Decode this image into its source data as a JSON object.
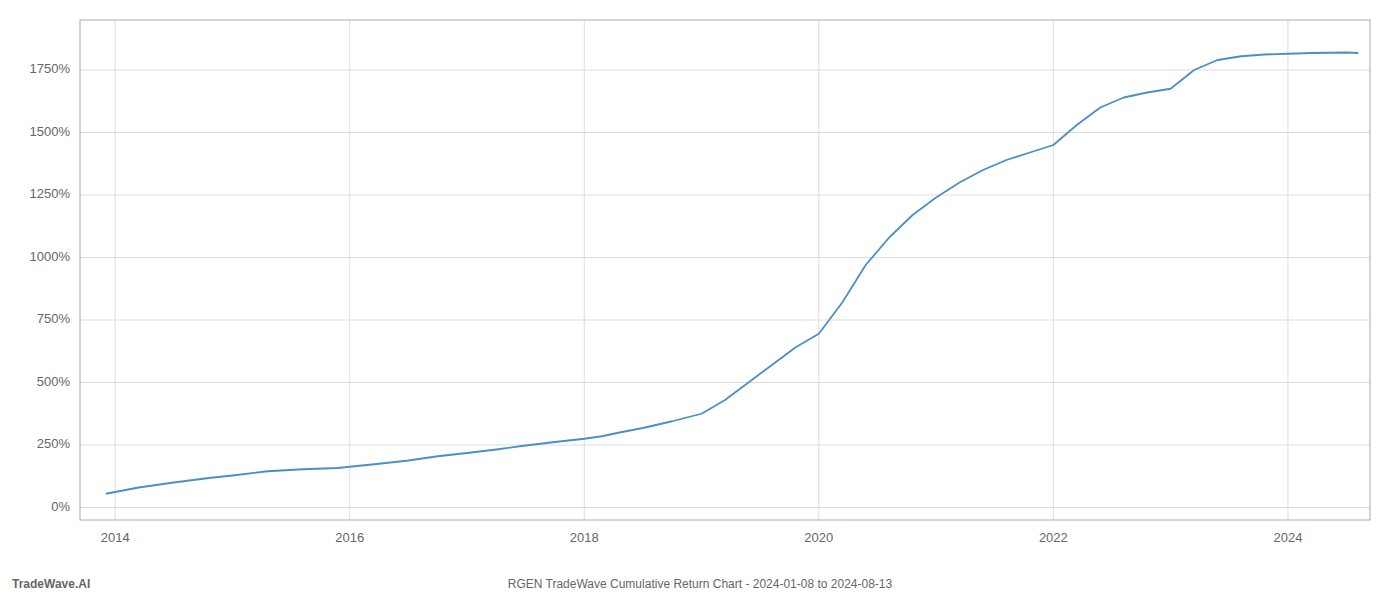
{
  "chart_data": {
    "type": "line",
    "title": "RGEN TradeWave Cumulative Return Chart - 2024-01-08 to 2024-08-13",
    "annotations": [
      "TradeWave.AI"
    ],
    "color": "#4a90c4",
    "grid": true,
    "x": [
      2013.92,
      2014.0,
      2014.2,
      2014.5,
      2014.8,
      2015.0,
      2015.3,
      2015.6,
      2015.9,
      2016.0,
      2016.25,
      2016.5,
      2016.75,
      2017.0,
      2017.25,
      2017.5,
      2017.75,
      2018.0,
      2018.15,
      2018.3,
      2018.5,
      2018.75,
      2019.0,
      2019.2,
      2019.4,
      2019.6,
      2019.8,
      2020.0,
      2020.2,
      2020.4,
      2020.6,
      2020.8,
      2021.0,
      2021.2,
      2021.4,
      2021.6,
      2021.8,
      2022.0,
      2022.2,
      2022.4,
      2022.6,
      2022.8,
      2023.0,
      2023.2,
      2023.4,
      2023.6,
      2023.8,
      2024.0,
      2024.2,
      2024.5,
      2024.6
    ],
    "values": [
      55,
      62,
      80,
      100,
      118,
      128,
      145,
      153,
      158,
      163,
      175,
      188,
      205,
      218,
      232,
      248,
      262,
      275,
      285,
      300,
      318,
      345,
      375,
      430,
      500,
      570,
      640,
      695,
      820,
      970,
      1080,
      1170,
      1240,
      1300,
      1350,
      1390,
      1420,
      1450,
      1530,
      1600,
      1640,
      1660,
      1675,
      1750,
      1790,
      1805,
      1812,
      1815,
      1818,
      1820,
      1818
    ],
    "xlim": [
      2013.7,
      2024.7
    ],
    "ylim": [
      -50,
      1950
    ],
    "xticks": [
      2014,
      2016,
      2018,
      2020,
      2022,
      2024
    ],
    "yticks": [
      {
        "value": 0,
        "label": "0%"
      },
      {
        "value": 250,
        "label": "250%"
      },
      {
        "value": 500,
        "label": "500%"
      },
      {
        "value": 750,
        "label": "750%"
      },
      {
        "value": 1000,
        "label": "1000%"
      },
      {
        "value": 1250,
        "label": "1250%"
      },
      {
        "value": 1500,
        "label": "1500%"
      },
      {
        "value": 1750,
        "label": "1750%"
      }
    ]
  }
}
